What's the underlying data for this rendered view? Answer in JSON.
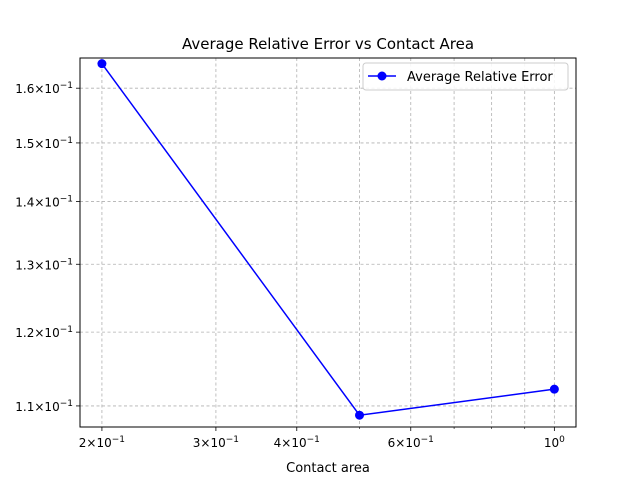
{
  "chart_data": {
    "type": "line",
    "title": "Average Relative Error vs Contact Area",
    "xlabel": "Contact area",
    "ylabel": "",
    "xscale": "log",
    "yscale": "log",
    "xlim": [
      0.185,
      1.08
    ],
    "ylim": [
      0.1073,
      0.1658
    ],
    "grid": true,
    "legend_position": "top-right",
    "x_ticks": [
      {
        "value": 0.2,
        "mantissa": "2",
        "base": "10",
        "exp": "−1"
      },
      {
        "value": 0.3,
        "mantissa": "3",
        "base": "10",
        "exp": "−1"
      },
      {
        "value": 0.4,
        "mantissa": "4",
        "base": "10",
        "exp": "−1"
      },
      {
        "value": 0.6,
        "mantissa": "6",
        "base": "10",
        "exp": "−1"
      },
      {
        "value": 1.0,
        "mantissa": "",
        "base": "10",
        "exp": "0"
      }
    ],
    "x_minor_ticks": [
      0.5,
      0.7,
      0.8,
      0.9
    ],
    "y_ticks": [
      {
        "value": 0.11,
        "mantissa": "1.1",
        "base": "10",
        "exp": "−1"
      },
      {
        "value": 0.12,
        "mantissa": "1.2",
        "base": "10",
        "exp": "−1"
      },
      {
        "value": 0.13,
        "mantissa": "1.3",
        "base": "10",
        "exp": "−1"
      },
      {
        "value": 0.14,
        "mantissa": "1.4",
        "base": "10",
        "exp": "−1"
      },
      {
        "value": 0.15,
        "mantissa": "1.5",
        "base": "10",
        "exp": "−1"
      },
      {
        "value": 0.16,
        "mantissa": "1.6",
        "base": "10",
        "exp": "−1"
      }
    ],
    "series": [
      {
        "name": "Average Relative Error",
        "color": "#0000ff",
        "marker": "circle",
        "x": [
          0.2,
          0.5,
          1.0
        ],
        "y": [
          0.1647,
          0.1088,
          0.1122
        ]
      }
    ]
  }
}
